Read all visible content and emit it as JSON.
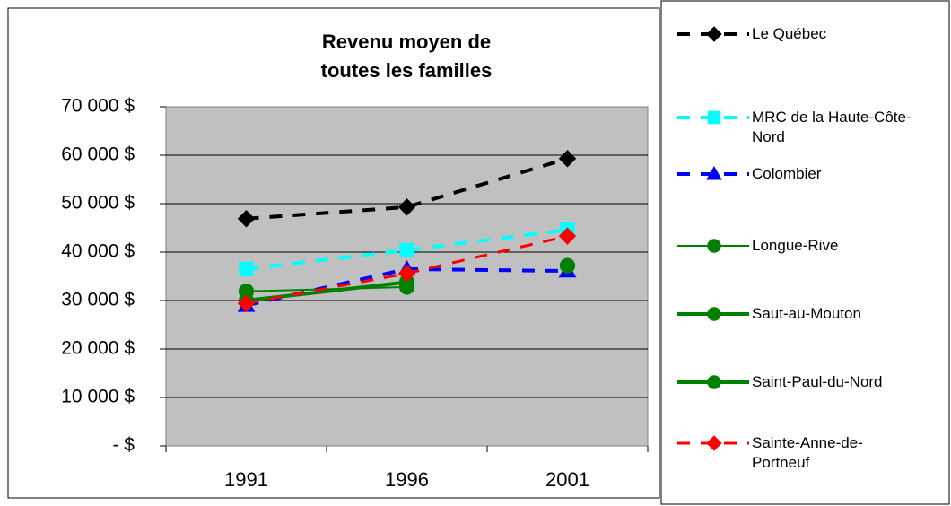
{
  "chart_data": {
    "type": "line",
    "title": [
      "Revenu moyen de",
      "toutes les familles"
    ],
    "categories": [
      "1991",
      "1996",
      "2001"
    ],
    "ylim": [
      0,
      70000
    ],
    "yticks": [
      {
        "value": 0,
        "label": "- $"
      },
      {
        "value": 10000,
        "label": "10 000 $"
      },
      {
        "value": 20000,
        "label": "20 000 $"
      },
      {
        "value": 30000,
        "label": "30 000 $"
      },
      {
        "value": 40000,
        "label": "40 000 $"
      },
      {
        "value": 50000,
        "label": "50 000 $"
      },
      {
        "value": 60000,
        "label": "60 000 $"
      },
      {
        "value": 70000,
        "label": "70 000 $"
      }
    ],
    "grid": true,
    "legend": "right",
    "series": [
      {
        "name": "Le Québec",
        "color": "#000000",
        "dash": true,
        "marker": "diamond",
        "line_width": 4,
        "values": [
          46900,
          49300,
          59300
        ]
      },
      {
        "name": "MRC de la Haute-Côte-Nord",
        "color": "#00ffff",
        "dash": true,
        "marker": "square",
        "line_width": 4,
        "values": [
          36500,
          40400,
          44600
        ]
      },
      {
        "name": "Colombier",
        "color": "#0000ff",
        "dash": true,
        "marker": "triangle",
        "line_width": 4,
        "values": [
          29000,
          36500,
          36100
        ]
      },
      {
        "name": "Longue-Rive",
        "color": "#008000",
        "dash": false,
        "marker": "circle",
        "line_width": 2,
        "values": [
          31900,
          32800,
          null
        ]
      },
      {
        "name": "Saut-au-Mouton",
        "color": "#008000",
        "dash": false,
        "marker": "circle",
        "line_width": 4,
        "values": [
          30000,
          33800,
          null
        ]
      },
      {
        "name": "Saint-Paul-du-Nord",
        "color": "#008000",
        "dash": false,
        "marker": "circle",
        "line_width": 4,
        "values": [
          null,
          null,
          37200
        ]
      },
      {
        "name": "Sainte-Anne-de-Portneuf",
        "color": "#ff0000",
        "dash": true,
        "marker": "diamond",
        "line_width": 3,
        "values": [
          29400,
          35600,
          43300
        ]
      }
    ]
  }
}
